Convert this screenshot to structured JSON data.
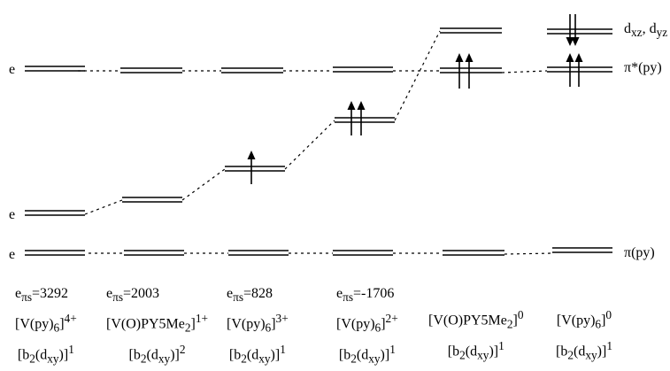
{
  "row_labels": {
    "top": "e",
    "bottom_e": "e",
    "bottom": "e"
  },
  "orbital_labels": {
    "d_xz_dyz": "d<sub>xz</sub>, d<sub>yz</sub>",
    "pi_star": "π*(py)",
    "pi": "π(py)"
  },
  "columns": [
    {
      "e_pi_s": "e<sub>πs</sub>=3292",
      "complex": "[V(py)<sub>6</sub>]<sup>4+</sup>",
      "config": "[b<sub>2</sub>(d<sub>xy</sub>)]<sup>1</sup>"
    },
    {
      "e_pi_s": "e<sub>πs</sub>=2003",
      "complex": "[V(O)PY5Me<sub>2</sub>]<sup>1+</sup>",
      "config": "[b<sub>2</sub>(d<sub>xy</sub>)]<sup>2</sup>"
    },
    {
      "e_pi_s": "e<sub>πs</sub>=828",
      "complex": "[V(py)<sub>6</sub>]<sup>3+</sup>",
      "config": "[b<sub>2</sub>(d<sub>xy</sub>)]<sup>1</sup>"
    },
    {
      "e_pi_s": "e<sub>πs</sub>=-1706",
      "complex": "[V(py)<sub>6</sub>]<sup>2+</sup>",
      "config": "[b<sub>2</sub>(d<sub>xy</sub>)]<sup>1</sup>"
    },
    {
      "e_pi_s": "",
      "complex": "[V(O)PY5Me<sub>2</sub>]<sup>0</sup>",
      "config": "[b<sub>2</sub>(d<sub>xy</sub>)]<sup>1</sup>"
    },
    {
      "e_pi_s": "",
      "complex": "[V(py)<sub>6</sub>]<sup>0</sup>",
      "config": "[b<sub>2</sub>(d<sub>xy</sub>)]<sup>1</sup>"
    }
  ]
}
